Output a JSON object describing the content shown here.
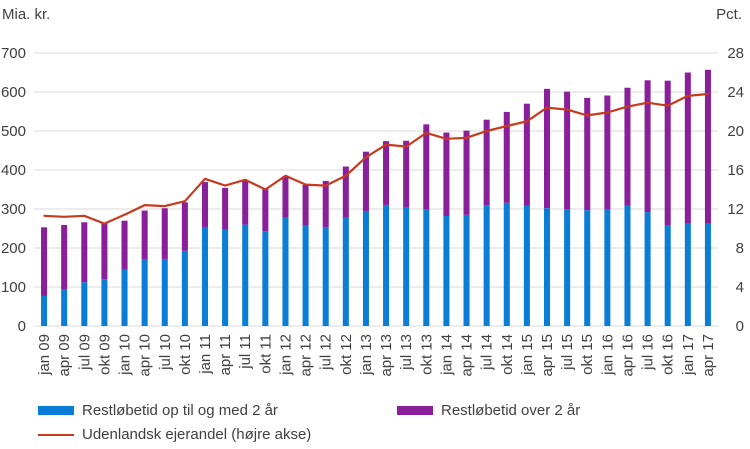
{
  "chart_data": {
    "type": "bar",
    "stacked": true,
    "unit_left": "Mia. kr.",
    "unit_right": "Pct.",
    "categories": [
      "jan 09",
      "apr 09",
      "jul 09",
      "okt 09",
      "jan 10",
      "apr 10",
      "jul 10",
      "okt 10",
      "jan 11",
      "apr 11",
      "jul 11",
      "okt 11",
      "jan 12",
      "apr 12",
      "jul 12",
      "okt 12",
      "jan 13",
      "apr 13",
      "jul 13",
      "okt 13",
      "jan 14",
      "apr 14",
      "jul 14",
      "okt 14",
      "jan 15",
      "apr 15",
      "jul 15",
      "okt 15",
      "jan 16",
      "apr 16",
      "jul 16",
      "okt 16",
      "jan 17",
      "apr 17"
    ],
    "y_left": {
      "min": 0,
      "max": 700,
      "ticks": [
        "0",
        "100",
        "200",
        "300",
        "400",
        "500",
        "600",
        "700"
      ]
    },
    "y_right": {
      "min": 0,
      "max": 28,
      "ticks": [
        "0",
        "4",
        "8",
        "12",
        "16",
        "20",
        "24",
        "28"
      ]
    },
    "series": [
      {
        "name": "Restløbetid op til og med 2 år",
        "axis": "left",
        "kind": "bar",
        "color": "#0a7ed6",
        "values": [
          77,
          93,
          112,
          120,
          145,
          170,
          172,
          193,
          252,
          247,
          260,
          243,
          278,
          257,
          253,
          278,
          295,
          310,
          305,
          300,
          282,
          285,
          310,
          316,
          308,
          302,
          300,
          297,
          298,
          308,
          292,
          258,
          262,
          262
        ]
      },
      {
        "name": "Restløbetid over 2 år",
        "axis": "left",
        "kind": "bar",
        "color": "#8a1f9a",
        "values": [
          176,
          166,
          154,
          145,
          125,
          126,
          130,
          124,
          117,
          107,
          113,
          110,
          106,
          105,
          119,
          131,
          152,
          164,
          170,
          217,
          214,
          216,
          219,
          233,
          262,
          306,
          301,
          288,
          293,
          303,
          338,
          371,
          388,
          395
        ]
      },
      {
        "name": "Udenlandsk ejerandel (højre akse)",
        "axis": "right",
        "kind": "line",
        "color": "#c83a1e",
        "values": [
          11.3,
          11.2,
          11.3,
          10.5,
          11.4,
          12.4,
          12.3,
          12.8,
          15.1,
          14.4,
          15.0,
          14.0,
          15.4,
          14.5,
          14.4,
          15.4,
          17.3,
          18.6,
          18.4,
          19.8,
          19.2,
          19.3,
          20.0,
          20.5,
          21.0,
          22.4,
          22.2,
          21.6,
          21.9,
          22.5,
          22.9,
          22.6,
          23.6,
          23.8
        ]
      }
    ]
  }
}
